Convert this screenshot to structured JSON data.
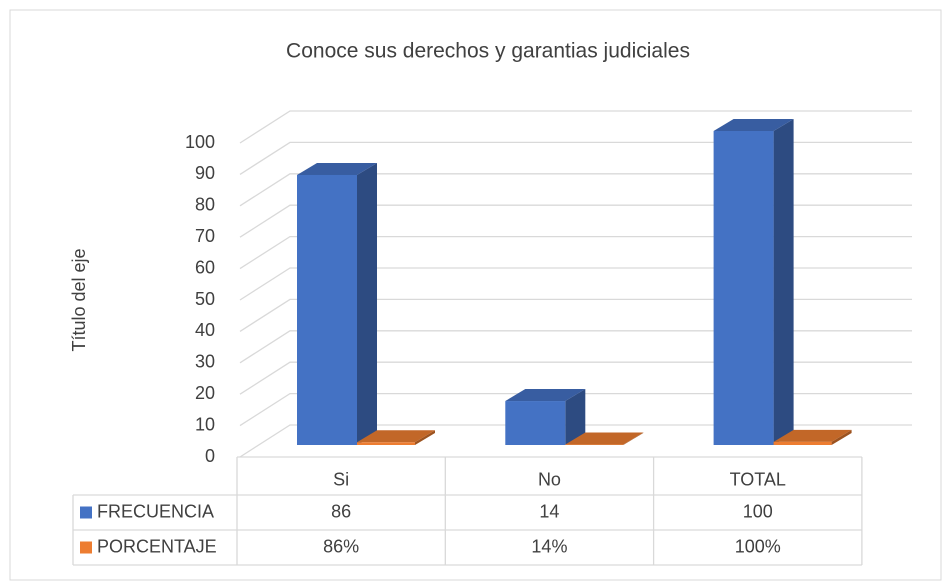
{
  "chart_data": {
    "type": "bar3d",
    "title": "Conoce sus derechos y garantias judiciales",
    "y_axis_label": "Título del eje",
    "categories": [
      "Si",
      "No",
      "TOTAL"
    ],
    "series": [
      {
        "name": "FRECUENCIA",
        "color": "#4472c4",
        "values": [
          86,
          14,
          100
        ]
      },
      {
        "name": "PORCENTAJE",
        "color": "#ed7d31",
        "values": [
          0.86,
          0.14,
          1
        ],
        "value_labels": [
          "86%",
          "14%",
          "100%"
        ]
      }
    ],
    "ylim": [
      0,
      100
    ],
    "yticks": [
      0,
      10,
      20,
      30,
      40,
      50,
      60,
      70,
      80,
      90,
      100
    ],
    "grid": true
  }
}
